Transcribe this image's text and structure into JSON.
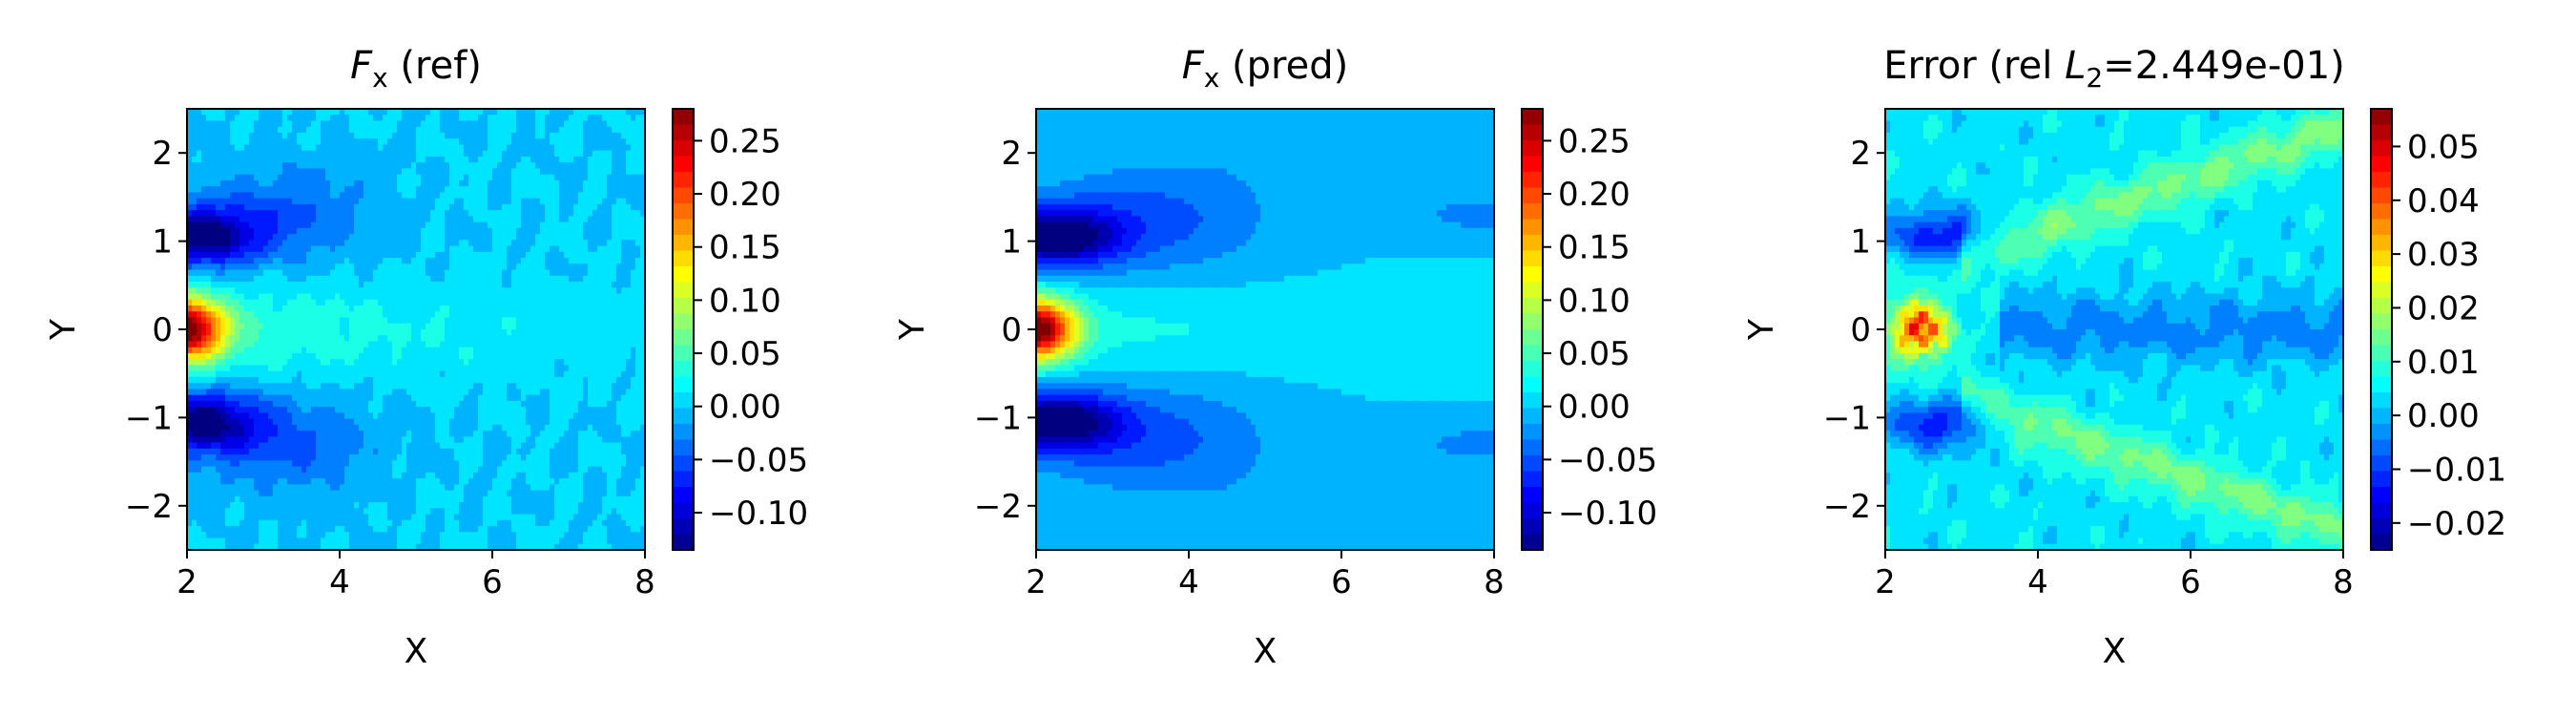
{
  "figure": {
    "panels": [
      {
        "title_pre": "F",
        "title_sub": "x",
        "title_post": " (ref)",
        "xlabel": "X",
        "ylabel": "Y",
        "xticks": [
          "2",
          "4",
          "6",
          "8"
        ],
        "yticks": [
          "2",
          "1",
          "0",
          "−1",
          "−2"
        ],
        "cbar_ticks": [
          "0.25",
          "0.20",
          "0.15",
          "0.10",
          "0.05",
          "0.00",
          "−0.05",
          "−0.10"
        ]
      },
      {
        "title_pre": "F",
        "title_sub": "x",
        "title_post": " (pred)",
        "xlabel": "X",
        "ylabel": "Y",
        "xticks": [
          "2",
          "4",
          "6",
          "8"
        ],
        "yticks": [
          "2",
          "1",
          "0",
          "−1",
          "−2"
        ],
        "cbar_ticks": [
          "0.25",
          "0.20",
          "0.15",
          "0.10",
          "0.05",
          "0.00",
          "−0.05",
          "−0.10"
        ]
      },
      {
        "title_pre": "Error (rel ",
        "title_italic": "L",
        "title_sub": "2",
        "title_post": "=2.449e-01)",
        "xlabel": "X",
        "ylabel": "Y",
        "xticks": [
          "2",
          "4",
          "6",
          "8"
        ],
        "yticks": [
          "2",
          "1",
          "0",
          "−1",
          "−2"
        ],
        "cbar_ticks": [
          "0.05",
          "0.04",
          "0.03",
          "0.02",
          "0.01",
          "0.00",
          "−0.01",
          "−0.02"
        ]
      }
    ]
  },
  "chart_data": [
    {
      "type": "heatmap",
      "title": "Fx (ref)",
      "xlabel": "X",
      "ylabel": "Y",
      "xlim": [
        2,
        8
      ],
      "ylim": [
        -2.5,
        2.5
      ],
      "colormap": "jet",
      "colorbar_range": [
        -0.135,
        0.28
      ],
      "colorbar_ticks": [
        0.25,
        0.2,
        0.15,
        0.1,
        0.05,
        0.0,
        -0.05,
        -0.1
      ],
      "features": [
        {
          "x": 2.0,
          "y": 0.0,
          "value": 0.28
        },
        {
          "x": 2.2,
          "y": 1.0,
          "value": -0.13
        },
        {
          "x": 2.2,
          "y": -1.0,
          "value": -0.13
        },
        {
          "x": 3.0,
          "y": 0.0,
          "value": 0.05
        },
        {
          "x": 5.0,
          "y": 0.0,
          "value": 0.02
        },
        {
          "x": 7.5,
          "y": 2.0,
          "value": 0.0
        }
      ]
    },
    {
      "type": "heatmap",
      "title": "Fx (pred)",
      "xlabel": "X",
      "ylabel": "Y",
      "xlim": [
        2,
        8
      ],
      "ylim": [
        -2.5,
        2.5
      ],
      "colormap": "jet",
      "colorbar_range": [
        -0.135,
        0.28
      ],
      "colorbar_ticks": [
        0.25,
        0.2,
        0.15,
        0.1,
        0.05,
        0.0,
        -0.05,
        -0.1
      ],
      "features": [
        {
          "x": 2.0,
          "y": 0.0,
          "value": 0.27
        },
        {
          "x": 2.3,
          "y": 1.0,
          "value": -0.13
        },
        {
          "x": 2.3,
          "y": -1.0,
          "value": -0.13
        },
        {
          "x": 3.0,
          "y": 0.0,
          "value": 0.05
        },
        {
          "x": 6.0,
          "y": 0.0,
          "value": 0.025
        },
        {
          "x": 7.8,
          "y": 1.3,
          "value": -0.03
        },
        {
          "x": 7.8,
          "y": -1.3,
          "value": -0.03
        }
      ]
    },
    {
      "type": "heatmap",
      "title": "Error (rel L2=2.449e-01)",
      "xlabel": "X",
      "ylabel": "Y",
      "xlim": [
        2,
        8
      ],
      "ylim": [
        -2.5,
        2.5
      ],
      "colormap": "jet",
      "colorbar_range": [
        -0.025,
        0.057
      ],
      "colorbar_ticks": [
        0.05,
        0.04,
        0.03,
        0.02,
        0.01,
        0.0,
        -0.01,
        -0.02
      ],
      "features": [
        {
          "x": 2.3,
          "y": 0.0,
          "value": 0.055
        },
        {
          "x": 2.6,
          "y": 0.2,
          "value": 0.05
        },
        {
          "x": 2.8,
          "y": 0.0,
          "value": 0.045
        },
        {
          "x": 2.4,
          "y": 1.0,
          "value": -0.02
        },
        {
          "x": 2.4,
          "y": -1.0,
          "value": -0.02
        },
        {
          "x": 5.0,
          "y": 1.0,
          "value": 0.012
        },
        {
          "x": 5.0,
          "y": -1.0,
          "value": 0.012
        },
        {
          "x": 6.0,
          "y": 0.0,
          "value": -0.01
        }
      ]
    }
  ]
}
